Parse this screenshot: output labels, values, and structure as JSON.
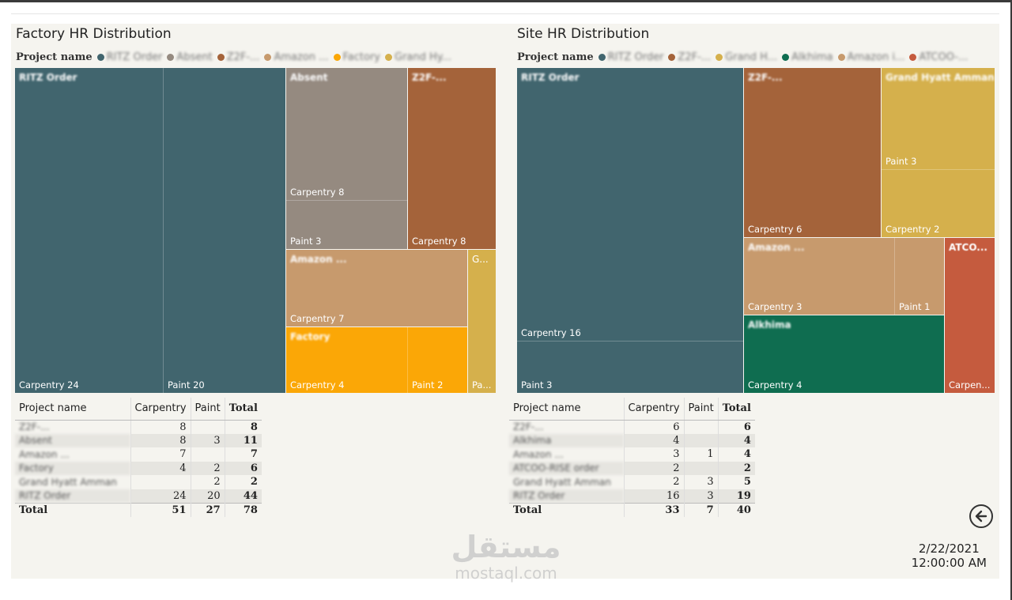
{
  "colors": {
    "ritz": "#41656e",
    "absent": "#958a80",
    "z2f": "#a4633a",
    "amazon": "#c79a6d",
    "factory": "#fba706",
    "grand": "#d5b04c",
    "alkhima": "#0f6d50",
    "atcoo": "#c55b3e"
  },
  "factory": {
    "title": "Factory HR Distribution",
    "legend_title": "Project name",
    "legend_items": [
      "RITZ Order",
      "Absent",
      "Z2F-...",
      "Amazon ...",
      "Factory",
      "Grand Hy..."
    ],
    "tiles": {
      "ritz": {
        "name": "RITZ Order",
        "labels": [
          "Carpentry 24",
          "Paint 20"
        ]
      },
      "absent": {
        "name": "Absent",
        "labels": [
          "Carpentry 8",
          "Paint 3"
        ]
      },
      "z2f": {
        "name": "Z2F-...",
        "labels": [
          "Carpentry 8"
        ]
      },
      "amazon": {
        "name": "Amazon ...",
        "labels": [
          "Carpentry 7"
        ]
      },
      "factory": {
        "name": "Factory",
        "labels": [
          "Carpentry 4",
          "Paint 2"
        ]
      },
      "grand": {
        "name": "G...",
        "labels": [
          "Pa..."
        ]
      }
    },
    "table": {
      "headers": [
        "Project name",
        "Carpentry",
        "Paint",
        "Total"
      ],
      "rows": [
        [
          "Z2F-...",
          "8",
          "",
          "8"
        ],
        [
          "Absent",
          "8",
          "3",
          "11"
        ],
        [
          "Amazon ...",
          "7",
          "",
          "7"
        ],
        [
          "Factory",
          "4",
          "2",
          "6"
        ],
        [
          "Grand Hyatt Amman",
          "",
          "2",
          "2"
        ],
        [
          "RITZ Order",
          "24",
          "20",
          "44"
        ]
      ],
      "total": [
        "Total",
        "51",
        "27",
        "78"
      ]
    }
  },
  "site": {
    "title": "Site HR Distribution",
    "legend_title": "Project name",
    "legend_items": [
      "RITZ Order",
      "Z2F-...",
      "Grand H...",
      "Alkhima",
      "Amazon i...",
      "ATCOO-..."
    ],
    "tiles": {
      "ritz": {
        "name": "RITZ Order",
        "labels": [
          "Carpentry 16",
          "Paint 3"
        ]
      },
      "z2f": {
        "name": "Z2F-...",
        "labels": [
          "Carpentry 6"
        ]
      },
      "grand": {
        "name": "Grand Hyatt Amman",
        "labels": [
          "Paint 3",
          "Carpentry 2"
        ]
      },
      "amazon": {
        "name": "Amazon ...",
        "labels": [
          "Carpentry 3",
          "Paint 1"
        ]
      },
      "atcoo": {
        "name": "ATCO...",
        "labels": [
          "Carpen..."
        ]
      },
      "alkhima": {
        "name": "Alkhima",
        "labels": [
          "Carpentry 4"
        ]
      }
    },
    "table": {
      "headers": [
        "Project name",
        "Carpentry",
        "Paint",
        "Total"
      ],
      "rows": [
        [
          "Z2F-...",
          "6",
          "",
          "6"
        ],
        [
          "Alkhima",
          "4",
          "",
          "4"
        ],
        [
          "Amazon ...",
          "3",
          "1",
          "4"
        ],
        [
          "ATCOO-RISE order",
          "2",
          "",
          "2"
        ],
        [
          "Grand Hyatt Amman",
          "2",
          "3",
          "5"
        ],
        [
          "RITZ Order",
          "16",
          "3",
          "19"
        ]
      ],
      "total": [
        "Total",
        "33",
        "7",
        "40"
      ]
    }
  },
  "footer": {
    "date": "2/22/2021",
    "time": "12:00:00 AM",
    "back_icon": "back-arrow-icon",
    "watermark_ar": "مستقل",
    "watermark_en": "mostaql.com"
  }
}
